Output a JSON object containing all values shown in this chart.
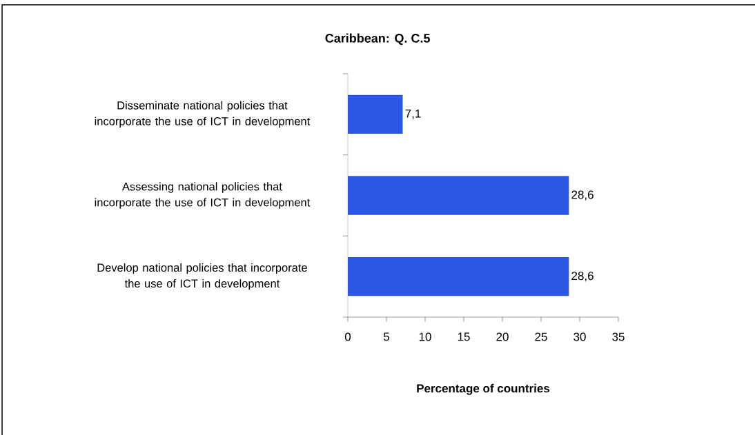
{
  "chart_data": {
    "type": "bar",
    "orientation": "horizontal",
    "title": "Caribbean: Q. C.5",
    "xlabel": "Percentage of countries",
    "categories": [
      "Disseminate national policies that incorporate the use of ICT in development",
      "Assessing national policies that incorporate the use of ICT in development",
      "Develop national policies that incorporate the use of ICT in development"
    ],
    "values": [
      7.1,
      28.6,
      28.6
    ],
    "value_labels": [
      "7,1",
      "28,6",
      "28,6"
    ],
    "color": "#2b57e6",
    "xlim": [
      0,
      35
    ],
    "xticks": [
      0,
      5,
      10,
      15,
      20,
      25,
      30,
      35
    ]
  }
}
